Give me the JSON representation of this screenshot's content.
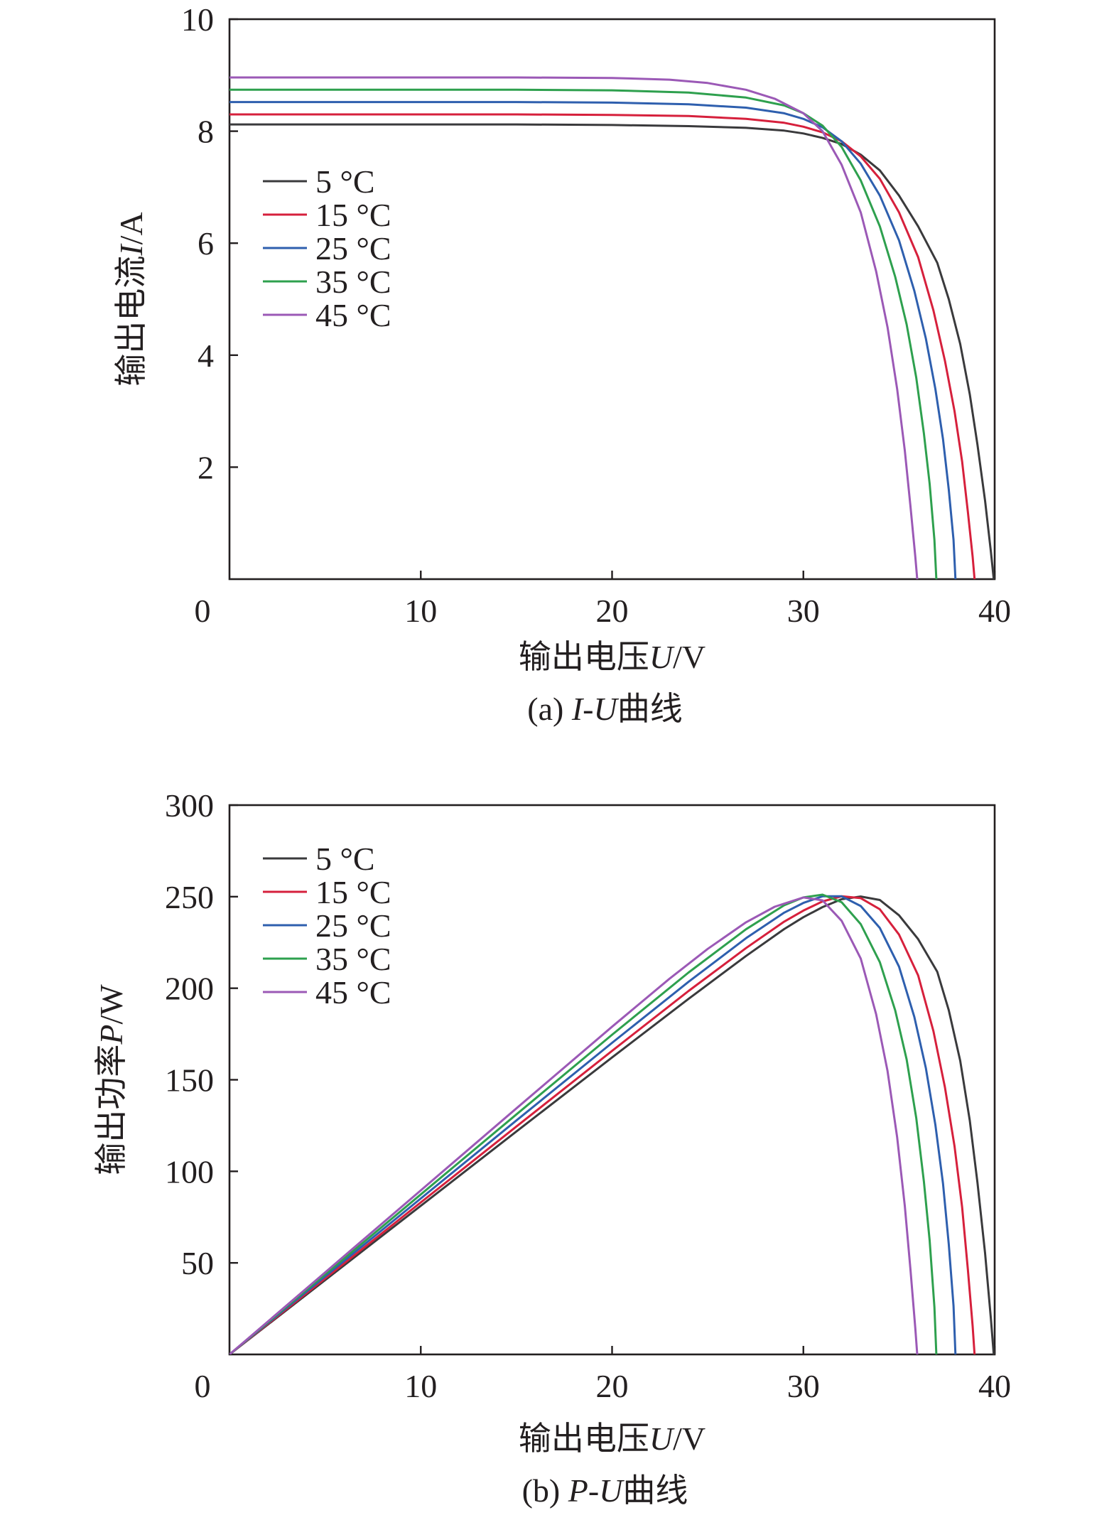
{
  "chart_data": [
    {
      "id": "iu",
      "type": "line",
      "caption_parts": [
        "(a) ",
        "I",
        "-",
        "U",
        "曲线"
      ],
      "xlabel_parts": [
        "输出电压",
        "U",
        "/V"
      ],
      "ylabel_parts": [
        "输出电流",
        "I",
        "/A"
      ],
      "xlim": [
        0,
        40
      ],
      "ylim": [
        0,
        10
      ],
      "x_ticks": [
        10,
        20,
        30,
        40
      ],
      "y_ticks": [
        2,
        4,
        6,
        8,
        10
      ],
      "origin_label": "0",
      "grid": false,
      "legend_position": "upper-left",
      "series": [
        {
          "name": "5 °C",
          "color": "#3a3a3c",
          "points": [
            [
              0,
              8.12
            ],
            [
              5,
              8.12
            ],
            [
              10,
              8.12
            ],
            [
              15,
              8.12
            ],
            [
              20,
              8.11
            ],
            [
              24,
              8.09
            ],
            [
              27,
              8.06
            ],
            [
              29,
              8.01
            ],
            [
              30,
              7.96
            ],
            [
              31,
              7.88
            ],
            [
              32,
              7.77
            ],
            [
              33,
              7.58
            ],
            [
              34,
              7.3
            ],
            [
              35,
              6.85
            ],
            [
              36,
              6.3
            ],
            [
              37,
              5.65
            ],
            [
              37.6,
              5.0
            ],
            [
              38.2,
              4.2
            ],
            [
              38.7,
              3.3
            ],
            [
              39.1,
              2.4
            ],
            [
              39.5,
              1.4
            ],
            [
              39.8,
              0.5
            ],
            [
              39.95,
              0
            ]
          ]
        },
        {
          "name": "15 °C",
          "color": "#d6203c",
          "points": [
            [
              0,
              8.3
            ],
            [
              5,
              8.3
            ],
            [
              10,
              8.3
            ],
            [
              15,
              8.3
            ],
            [
              20,
              8.29
            ],
            [
              24,
              8.27
            ],
            [
              27,
              8.22
            ],
            [
              29,
              8.15
            ],
            [
              30,
              8.08
            ],
            [
              31,
              7.98
            ],
            [
              32,
              7.82
            ],
            [
              33,
              7.55
            ],
            [
              34,
              7.15
            ],
            [
              35,
              6.55
            ],
            [
              36,
              5.75
            ],
            [
              36.8,
              4.8
            ],
            [
              37.4,
              3.9
            ],
            [
              37.9,
              3.0
            ],
            [
              38.3,
              2.1
            ],
            [
              38.6,
              1.2
            ],
            [
              38.85,
              0.4
            ],
            [
              38.95,
              0
            ]
          ]
        },
        {
          "name": "25 °C",
          "color": "#2e5fae",
          "points": [
            [
              0,
              8.52
            ],
            [
              5,
              8.52
            ],
            [
              10,
              8.52
            ],
            [
              15,
              8.52
            ],
            [
              20,
              8.51
            ],
            [
              24,
              8.48
            ],
            [
              27,
              8.42
            ],
            [
              29,
              8.32
            ],
            [
              30,
              8.22
            ],
            [
              31,
              8.07
            ],
            [
              32,
              7.82
            ],
            [
              33,
              7.42
            ],
            [
              34,
              6.85
            ],
            [
              35,
              6.05
            ],
            [
              35.8,
              5.15
            ],
            [
              36.4,
              4.3
            ],
            [
              36.9,
              3.4
            ],
            [
              37.3,
              2.5
            ],
            [
              37.6,
              1.6
            ],
            [
              37.85,
              0.7
            ],
            [
              37.95,
              0
            ]
          ]
        },
        {
          "name": "35 °C",
          "color": "#2ea04e",
          "points": [
            [
              0,
              8.74
            ],
            [
              5,
              8.74
            ],
            [
              10,
              8.74
            ],
            [
              15,
              8.74
            ],
            [
              20,
              8.73
            ],
            [
              24,
              8.69
            ],
            [
              27,
              8.6
            ],
            [
              29,
              8.46
            ],
            [
              30,
              8.32
            ],
            [
              31,
              8.1
            ],
            [
              32,
              7.72
            ],
            [
              33,
              7.12
            ],
            [
              34,
              6.3
            ],
            [
              34.8,
              5.4
            ],
            [
              35.4,
              4.55
            ],
            [
              35.9,
              3.6
            ],
            [
              36.3,
              2.6
            ],
            [
              36.6,
              1.7
            ],
            [
              36.85,
              0.7
            ],
            [
              36.95,
              0
            ]
          ]
        },
        {
          "name": "45 °C",
          "color": "#9b59b6",
          "points": [
            [
              0,
              8.96
            ],
            [
              5,
              8.96
            ],
            [
              10,
              8.96
            ],
            [
              15,
              8.96
            ],
            [
              20,
              8.95
            ],
            [
              23,
              8.92
            ],
            [
              25,
              8.86
            ],
            [
              27,
              8.74
            ],
            [
              28.5,
              8.58
            ],
            [
              30,
              8.32
            ],
            [
              31,
              8.0
            ],
            [
              32,
              7.4
            ],
            [
              33,
              6.55
            ],
            [
              33.8,
              5.5
            ],
            [
              34.4,
              4.5
            ],
            [
              34.9,
              3.4
            ],
            [
              35.3,
              2.3
            ],
            [
              35.6,
              1.3
            ],
            [
              35.85,
              0.4
            ],
            [
              35.95,
              0
            ]
          ]
        }
      ]
    },
    {
      "id": "pu",
      "type": "line",
      "caption_parts": [
        "(b) ",
        "P",
        "-",
        "U",
        "曲线"
      ],
      "xlabel_parts": [
        "输出电压",
        "U",
        "/V"
      ],
      "ylabel_parts": [
        "输出功率",
        "P",
        "/W"
      ],
      "xlim": [
        0,
        40
      ],
      "ylim": [
        0,
        300
      ],
      "x_ticks": [
        10,
        20,
        30,
        40
      ],
      "y_ticks": [
        50,
        100,
        150,
        200,
        250,
        300
      ],
      "origin_label": "0",
      "grid": false,
      "legend_position": "upper-left",
      "series": [
        {
          "name": "5 °C",
          "color": "#3a3a3c",
          "points": [
            [
              0,
              0
            ],
            [
              5,
              40.6
            ],
            [
              10,
              81.2
            ],
            [
              15,
              121.8
            ],
            [
              20,
              162.2
            ],
            [
              24,
              194.2
            ],
            [
              27,
              217.6
            ],
            [
              29,
              232.3
            ],
            [
              30,
              238.8
            ],
            [
              31,
              244.3
            ],
            [
              32,
              248.6
            ],
            [
              33,
              250.1
            ],
            [
              34,
              248.2
            ],
            [
              35,
              239.8
            ],
            [
              36,
              226.8
            ],
            [
              37,
              209.0
            ],
            [
              37.6,
              188
            ],
            [
              38.2,
              160.4
            ],
            [
              38.7,
              127.7
            ],
            [
              39.1,
              93.8
            ],
            [
              39.5,
              55.3
            ],
            [
              39.8,
              19.9
            ],
            [
              39.95,
              0
            ]
          ]
        },
        {
          "name": "15 °C",
          "color": "#d6203c",
          "points": [
            [
              0,
              0
            ],
            [
              5,
              41.5
            ],
            [
              10,
              83.0
            ],
            [
              15,
              124.5
            ],
            [
              20,
              165.8
            ],
            [
              24,
              198.5
            ],
            [
              27,
              221.9
            ],
            [
              29,
              236.4
            ],
            [
              30,
              242.4
            ],
            [
              31,
              247.4
            ],
            [
              32,
              250.2
            ],
            [
              33,
              249.2
            ],
            [
              34,
              243.1
            ],
            [
              35,
              229.3
            ],
            [
              36,
              207.0
            ],
            [
              36.8,
              176.6
            ],
            [
              37.4,
              145.9
            ],
            [
              37.9,
              113.7
            ],
            [
              38.3,
              80.4
            ],
            [
              38.6,
              46.3
            ],
            [
              38.85,
              15.5
            ],
            [
              38.95,
              0
            ]
          ]
        },
        {
          "name": "25 °C",
          "color": "#2e5fae",
          "points": [
            [
              0,
              0
            ],
            [
              5,
              42.6
            ],
            [
              10,
              85.2
            ],
            [
              15,
              127.8
            ],
            [
              20,
              170.2
            ],
            [
              24,
              203.5
            ],
            [
              27,
              227.3
            ],
            [
              29,
              241.3
            ],
            [
              30,
              246.6
            ],
            [
              31,
              250.2
            ],
            [
              32,
              250.2
            ],
            [
              33,
              244.9
            ],
            [
              34,
              232.9
            ],
            [
              35,
              211.8
            ],
            [
              35.8,
              184.4
            ],
            [
              36.4,
              156.5
            ],
            [
              36.9,
              125.5
            ],
            [
              37.3,
              93.3
            ],
            [
              37.6,
              60.2
            ],
            [
              37.85,
              26.5
            ],
            [
              37.95,
              0
            ]
          ]
        },
        {
          "name": "35 °C",
          "color": "#2ea04e",
          "points": [
            [
              0,
              0
            ],
            [
              5,
              43.7
            ],
            [
              10,
              87.4
            ],
            [
              15,
              131.1
            ],
            [
              20,
              174.6
            ],
            [
              24,
              208.6
            ],
            [
              27,
              232.2
            ],
            [
              29,
              245.3
            ],
            [
              30,
              249.6
            ],
            [
              31,
              251.1
            ],
            [
              32,
              247.0
            ],
            [
              33,
              235.0
            ],
            [
              34,
              214.2
            ],
            [
              34.8,
              187.9
            ],
            [
              35.4,
              161.1
            ],
            [
              35.9,
              129.2
            ],
            [
              36.3,
              94.4
            ],
            [
              36.6,
              62.2
            ],
            [
              36.85,
              25.8
            ],
            [
              36.95,
              0
            ]
          ]
        },
        {
          "name": "45 °C",
          "color": "#9b59b6",
          "points": [
            [
              0,
              0
            ],
            [
              5,
              44.8
            ],
            [
              10,
              89.6
            ],
            [
              15,
              134.4
            ],
            [
              20,
              179.0
            ],
            [
              23,
              205.2
            ],
            [
              25,
              221.5
            ],
            [
              27,
              236.0
            ],
            [
              28.5,
              244.5
            ],
            [
              30,
              249.6
            ],
            [
              31,
              248.0
            ],
            [
              32,
              236.8
            ],
            [
              33,
              216.2
            ],
            [
              33.8,
              185.9
            ],
            [
              34.4,
              154.8
            ],
            [
              34.9,
              118.7
            ],
            [
              35.3,
              81.2
            ],
            [
              35.6,
              46.3
            ],
            [
              35.85,
              14.3
            ],
            [
              35.95,
              0
            ]
          ]
        }
      ]
    }
  ]
}
